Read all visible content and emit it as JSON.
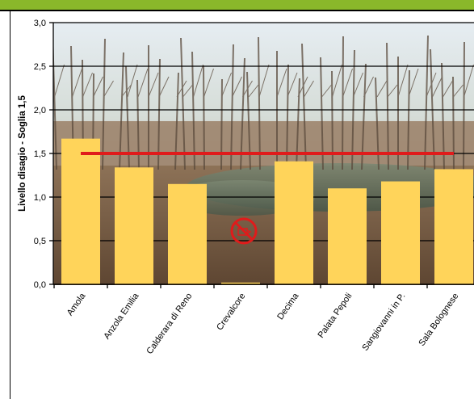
{
  "chart_data": {
    "type": "bar",
    "title": "",
    "xlabel": "",
    "ylabel": "Livello disagio - Soglia 1,5",
    "ylim": [
      0,
      3
    ],
    "yticks": [
      "0,0",
      "0,5",
      "1,0",
      "1,5",
      "2,0",
      "2,5",
      "3,0"
    ],
    "categories": [
      "Amola",
      "Anzola Emilia",
      "Calderara di Reno",
      "Crevalcore",
      "Decima",
      "Palata Pepoli",
      "Sangiovanni in P.",
      "Sala Bolognese"
    ],
    "values": [
      1.67,
      1.34,
      1.15,
      0.02,
      1.41,
      1.1,
      1.18,
      1.32
    ],
    "threshold": 1.5,
    "grid": true,
    "colors": {
      "bar": "#FFD45A",
      "threshold": "#E01B1B",
      "grid": "#000000",
      "no_entry": "#E01B1B"
    },
    "background": "photo-wetland-forest",
    "annotation_icon": "no-entry-icon"
  }
}
